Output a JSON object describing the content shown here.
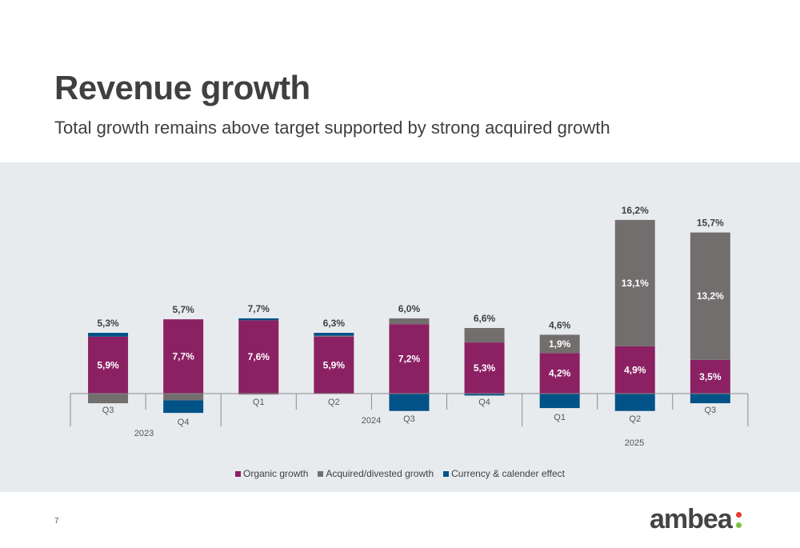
{
  "header": {
    "title": "Revenue growth",
    "subtitle": "Total growth remains above target supported by strong acquired growth"
  },
  "footer": {
    "page_number": "7",
    "logo_text": "ambea"
  },
  "colors": {
    "organic": "#8b2163",
    "acquired": "#736e6e",
    "currency": "#005287",
    "logo_dot_top": "#e53c2e",
    "logo_dot_bottom": "#7ac143",
    "background_band": "#e8ebee"
  },
  "chart_data": {
    "type": "bar",
    "stacked": true,
    "categories": [
      "Q3",
      "Q4",
      "Q1",
      "Q2",
      "Q3",
      "Q4",
      "Q1",
      "Q2",
      "Q3"
    ],
    "years": [
      {
        "label": "2023",
        "span": [
          0,
          1
        ]
      },
      {
        "label": "2024",
        "span": [
          2,
          5
        ]
      },
      {
        "label": "2025",
        "span": [
          6,
          8
        ]
      }
    ],
    "series": [
      {
        "name": "Organic growth",
        "values": [
          5.9,
          7.7,
          7.6,
          5.9,
          7.2,
          5.3,
          4.2,
          4.9,
          3.5
        ]
      },
      {
        "name": "Acquired/divested growth",
        "values": [
          -1.0,
          -0.7,
          -0.1,
          0.1,
          0.6,
          1.5,
          1.9,
          13.1,
          13.2
        ]
      },
      {
        "name": "Currency & calender effect",
        "values": [
          0.4,
          -1.3,
          0.2,
          0.3,
          -1.8,
          -0.2,
          -1.5,
          -1.8,
          -1.0
        ]
      }
    ],
    "organic_labels": [
      "5,9%",
      "7,7%",
      "7,6%",
      "5,9%",
      "7,2%",
      "5,3%",
      "4,2%",
      "4,9%",
      "3,5%"
    ],
    "acquired_labels": [
      "",
      "",
      "",
      "",
      "",
      "",
      "1,9%",
      "13,1%",
      "13,2%"
    ],
    "total_labels": [
      "5,3%",
      "5,7%",
      "7,7%",
      "6,3%",
      "6,0%",
      "6,6%",
      "4,6%",
      "16,2%",
      "15,7%"
    ],
    "legend_position": "bottom",
    "grid": false
  }
}
